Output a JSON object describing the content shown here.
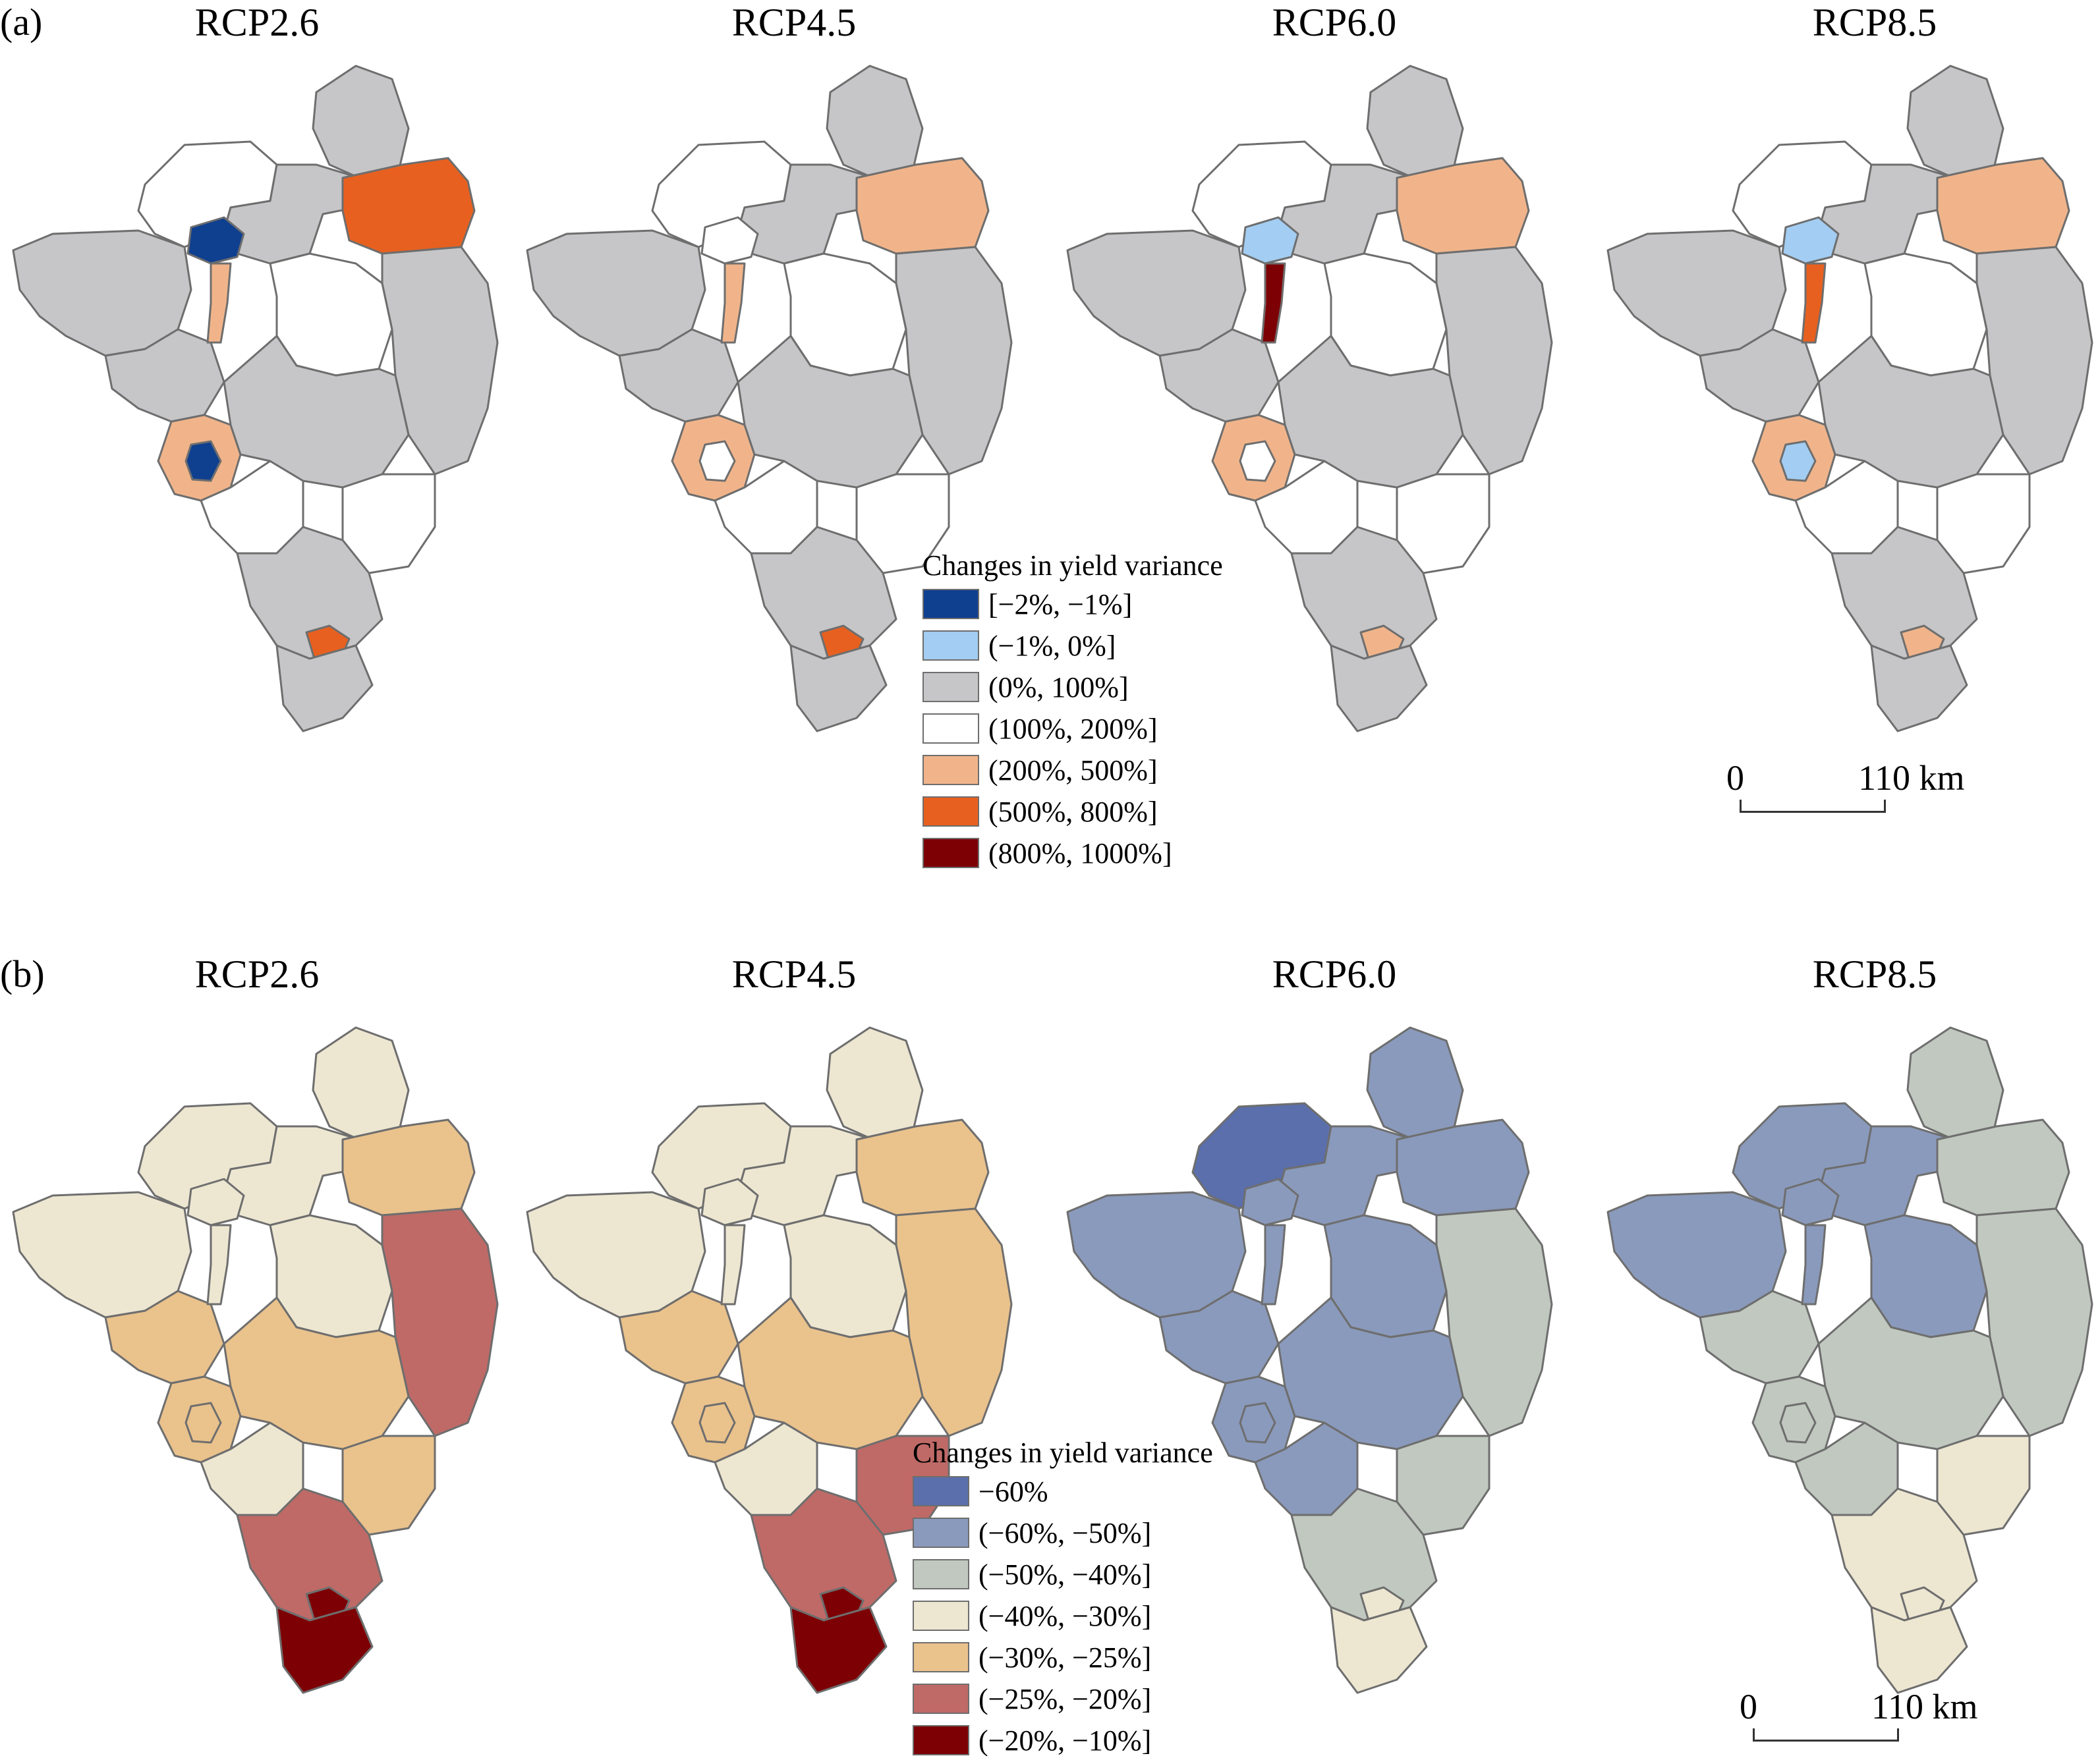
{
  "panels": [
    {
      "label": "(a)",
      "legend_title": "Changes in yield variance",
      "legend": [
        {
          "label": "[−2%, −1%]",
          "color": "#0f3f8f"
        },
        {
          "label": "(−1%, 0%]",
          "color": "#a3cdf2"
        },
        {
          "label": "(0%, 100%]",
          "color": "#c6c6c8"
        },
        {
          "label": "(100%, 200%]",
          "color": "#ffffff"
        },
        {
          "label": "(200%, 500%]",
          "color": "#f1b48a"
        },
        {
          "label": "(500%, 800%]",
          "color": "#e8601f"
        },
        {
          "label": "(800%, 1000%]",
          "color": "#7d0005"
        }
      ],
      "maps": [
        {
          "title": "RCP2.6",
          "regions": {
            "nw_white": "#ffffff",
            "north_gray": "#c6c6c8",
            "far_north": "#c6c6c8",
            "ne_blob": "#e8601f",
            "blue_small": "#0f3f8f",
            "center_white": "#ffffff",
            "west": "#c6c6c8",
            "mid_west": "#c6c6c8",
            "corridor": "#f1b48a",
            "ring": "#f1b48a",
            "ring_core": "#0f3f8f",
            "sw_white": "#ffffff",
            "center_s": "#c6c6c8",
            "east": "#c6c6c8",
            "mid_white": "#ffffff",
            "south": "#c6c6c8",
            "south_dot": "#e8601f",
            "tail": "#c6c6c8"
          }
        },
        {
          "title": "RCP4.5",
          "regions": {
            "nw_white": "#ffffff",
            "north_gray": "#c6c6c8",
            "far_north": "#c6c6c8",
            "ne_blob": "#f1b48a",
            "blue_small": "#ffffff",
            "center_white": "#ffffff",
            "west": "#c6c6c8",
            "mid_west": "#c6c6c8",
            "corridor": "#f1b48a",
            "ring": "#f1b48a",
            "ring_core": "#ffffff",
            "sw_white": "#ffffff",
            "center_s": "#c6c6c8",
            "east": "#c6c6c8",
            "mid_white": "#ffffff",
            "south": "#c6c6c8",
            "south_dot": "#e8601f",
            "tail": "#c6c6c8"
          }
        },
        {
          "title": "RCP6.0",
          "regions": {
            "nw_white": "#ffffff",
            "north_gray": "#c6c6c8",
            "far_north": "#c6c6c8",
            "ne_blob": "#f1b48a",
            "blue_small": "#a3cdf2",
            "center_white": "#ffffff",
            "west": "#c6c6c8",
            "mid_west": "#c6c6c8",
            "corridor": "#7d0005",
            "ring": "#f1b48a",
            "ring_core": "#ffffff",
            "sw_white": "#ffffff",
            "center_s": "#c6c6c8",
            "east": "#c6c6c8",
            "mid_white": "#ffffff",
            "south": "#c6c6c8",
            "south_dot": "#f1b48a",
            "tail": "#c6c6c8"
          }
        },
        {
          "title": "RCP8.5",
          "regions": {
            "nw_white": "#ffffff",
            "north_gray": "#c6c6c8",
            "far_north": "#c6c6c8",
            "ne_blob": "#f1b48a",
            "blue_small": "#a3cdf2",
            "center_white": "#ffffff",
            "west": "#c6c6c8",
            "mid_west": "#c6c6c8",
            "corridor": "#e8601f",
            "ring": "#f1b48a",
            "ring_core": "#a3cdf2",
            "sw_white": "#ffffff",
            "center_s": "#c6c6c8",
            "east": "#c6c6c8",
            "mid_white": "#ffffff",
            "south": "#c6c6c8",
            "south_dot": "#f1b48a",
            "tail": "#c6c6c8"
          }
        }
      ],
      "scalebar": {
        "start": "0",
        "end": "110 km"
      }
    },
    {
      "label": "(b)",
      "legend_title": "Changes in yield variance",
      "legend": [
        {
          "label": "−60%",
          "color": "#5a6fab"
        },
        {
          "label": "(−60%, −50%]",
          "color": "#8a9abc"
        },
        {
          "label": "(−50%, −40%]",
          "color": "#c0c8bf"
        },
        {
          "label": "(−40%, −30%]",
          "color": "#ede6d1"
        },
        {
          "label": "(−30%, −25%]",
          "color": "#eac28c"
        },
        {
          "label": "(−25%, −20%]",
          "color": "#bf6a67"
        },
        {
          "label": "(−20%, −10%]",
          "color": "#7d0005"
        }
      ],
      "maps": [
        {
          "title": "RCP2.6",
          "regions": {
            "nw_white": "#ede6d1",
            "north_gray": "#ede6d1",
            "far_north": "#ede6d1",
            "ne_blob": "#eac28c",
            "blue_small": "#ede6d1",
            "center_white": "#ede6d1",
            "west": "#ede6d1",
            "mid_west": "#eac28c",
            "corridor": "#ede6d1",
            "ring": "#eac28c",
            "ring_core": "#eac28c",
            "sw_white": "#ede6d1",
            "center_s": "#eac28c",
            "east": "#bf6a67",
            "mid_white": "#eac28c",
            "south": "#bf6a67",
            "south_dot": "#7d0005",
            "tail": "#7d0005"
          }
        },
        {
          "title": "RCP4.5",
          "regions": {
            "nw_white": "#ede6d1",
            "north_gray": "#ede6d1",
            "far_north": "#ede6d1",
            "ne_blob": "#eac28c",
            "blue_small": "#ede6d1",
            "center_white": "#ede6d1",
            "west": "#ede6d1",
            "mid_west": "#eac28c",
            "corridor": "#ede6d1",
            "ring": "#eac28c",
            "ring_core": "#eac28c",
            "sw_white": "#ede6d1",
            "center_s": "#eac28c",
            "east": "#eac28c",
            "mid_white": "#bf6a67",
            "south": "#bf6a67",
            "south_dot": "#7d0005",
            "tail": "#7d0005"
          }
        },
        {
          "title": "RCP6.0",
          "regions": {
            "nw_white": "#5a6fab",
            "north_gray": "#8a9abc",
            "far_north": "#8a9abc",
            "ne_blob": "#8a9abc",
            "blue_small": "#8a9abc",
            "center_white": "#8a9abc",
            "west": "#8a9abc",
            "mid_west": "#8a9abc",
            "corridor": "#8a9abc",
            "ring": "#8a9abc",
            "ring_core": "#8a9abc",
            "sw_white": "#8a9abc",
            "center_s": "#8a9abc",
            "east": "#c0c8bf",
            "mid_white": "#c0c8bf",
            "south": "#c0c8bf",
            "south_dot": "#ede6d1",
            "tail": "#ede6d1"
          }
        },
        {
          "title": "RCP8.5",
          "regions": {
            "nw_white": "#8a9abc",
            "north_gray": "#8a9abc",
            "far_north": "#c0c8bf",
            "ne_blob": "#c0c8bf",
            "blue_small": "#8a9abc",
            "center_white": "#8a9abc",
            "west": "#8a9abc",
            "mid_west": "#c0c8bf",
            "corridor": "#8a9abc",
            "ring": "#c0c8bf",
            "ring_core": "#c0c8bf",
            "sw_white": "#c0c8bf",
            "center_s": "#c0c8bf",
            "east": "#c0c8bf",
            "mid_white": "#ede6d1",
            "south": "#ede6d1",
            "south_dot": "#ede6d1",
            "tail": "#ede6d1"
          }
        }
      ],
      "scalebar": {
        "start": "0",
        "end": "110 km"
      }
    }
  ]
}
